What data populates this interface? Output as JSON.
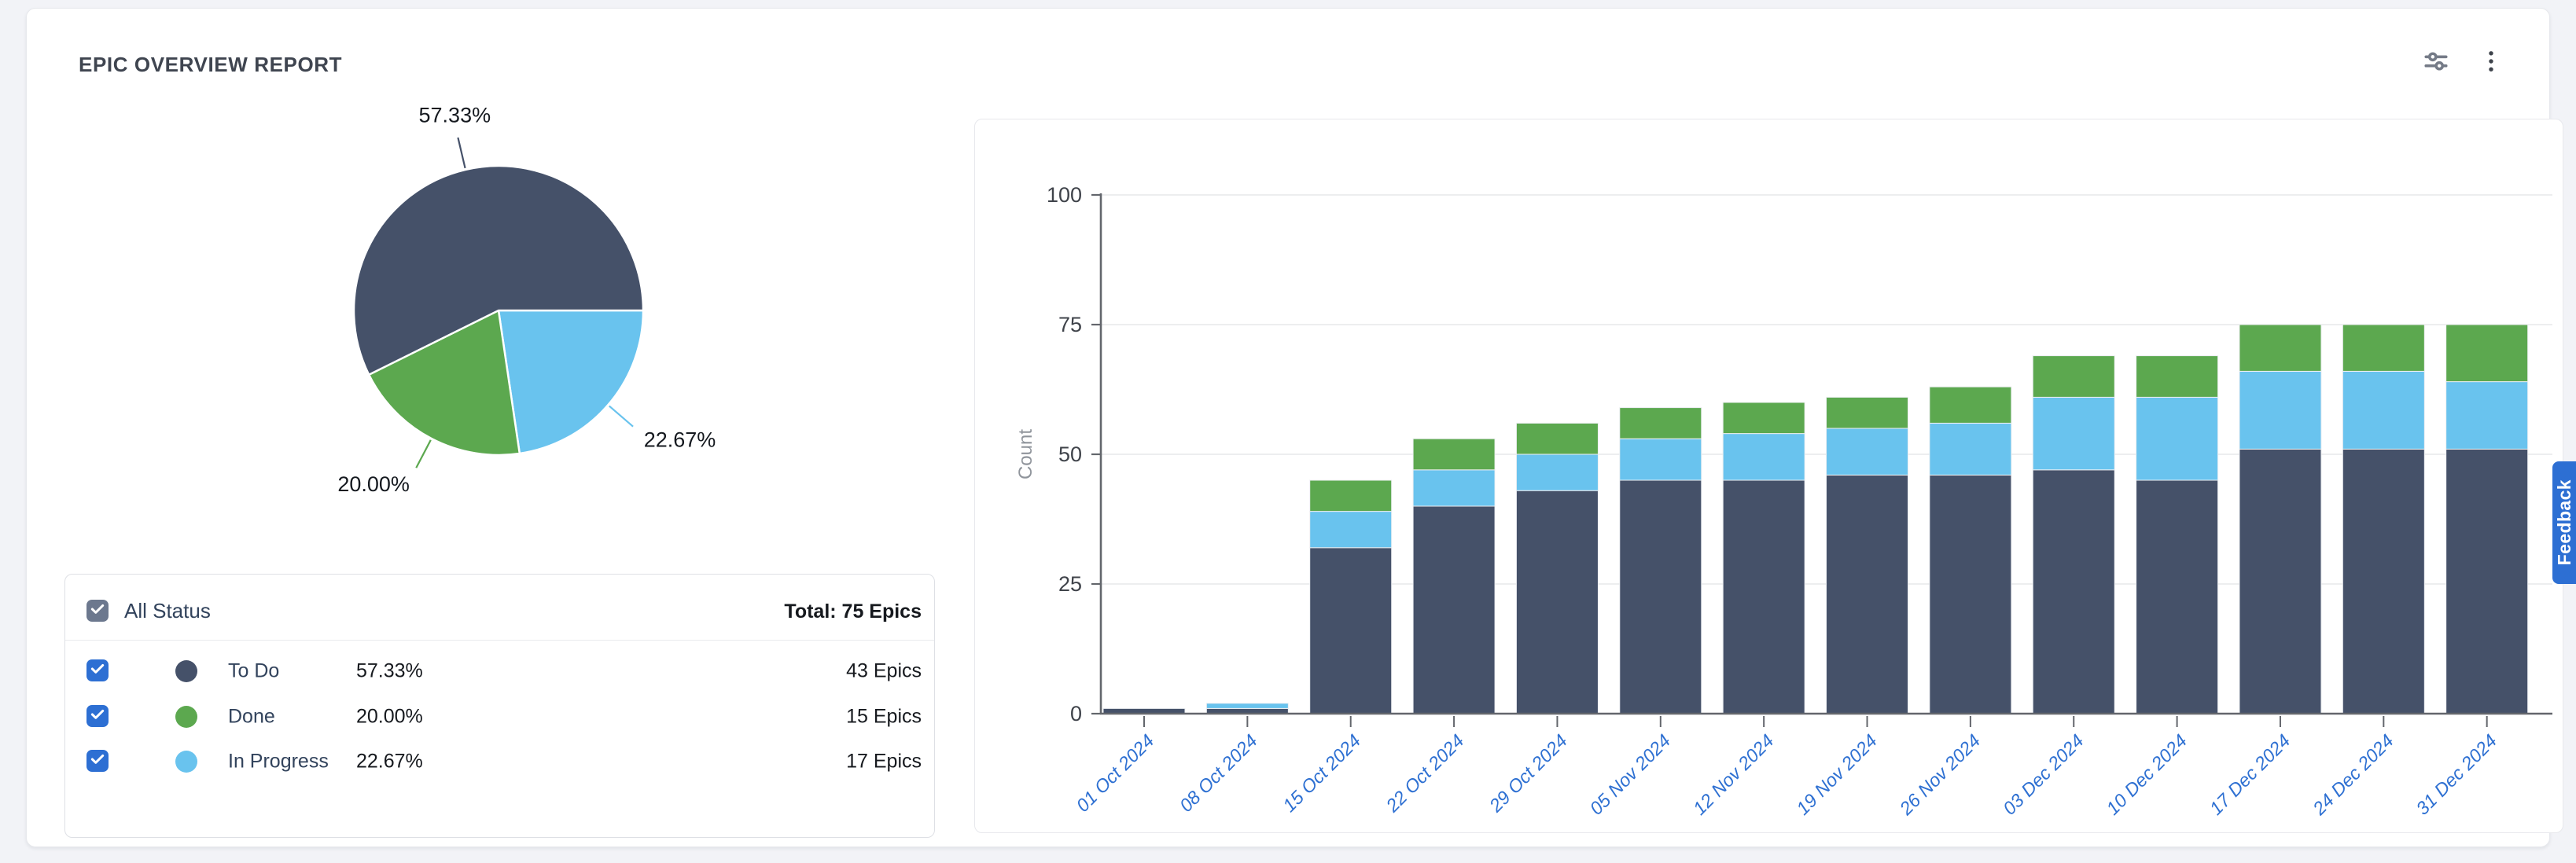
{
  "report": {
    "title": "EPIC OVERVIEW REPORT"
  },
  "toolbar": {
    "filter_icon": "sliders-icon",
    "menu_icon": "kebab-menu-icon"
  },
  "colors": {
    "to_do": "#455169",
    "done": "#5CA84F",
    "in_progress": "#69C3EE",
    "accent_blue": "#2D6FD3",
    "axis_label_blue": "#2E70D2",
    "grid": "#E7E8EA",
    "axis": "#63666C",
    "text_dark": "#16191E",
    "text_navy": "#32435C",
    "muted": "#8F949B"
  },
  "legend": {
    "all_label": "All Status",
    "total_label": "Total: 75 Epics",
    "rows": [
      {
        "label": "To Do",
        "pct": "57.33%",
        "count": "43 Epics",
        "color": "#455169",
        "checked": true
      },
      {
        "label": "Done",
        "pct": "20.00%",
        "count": "15 Epics",
        "color": "#5CA84F",
        "checked": true
      },
      {
        "label": "In Progress",
        "pct": "22.67%",
        "count": "17 Epics",
        "color": "#69C3EE",
        "checked": true
      }
    ]
  },
  "feedback_label": "Feedback",
  "chart_data": [
    {
      "type": "pie",
      "title": "Epic status distribution",
      "total_epics": 75,
      "start_angle_deg": 0,
      "slices": [
        {
          "label": "In Progress",
          "percent": 22.67,
          "pct_label": "22.67%",
          "epics": 17,
          "color": "#69C3EE"
        },
        {
          "label": "Done",
          "percent": 20.0,
          "pct_label": "20.00%",
          "epics": 15,
          "color": "#5CA84F"
        },
        {
          "label": "To Do",
          "percent": 57.33,
          "pct_label": "57.33%",
          "epics": 43,
          "color": "#455169"
        }
      ]
    },
    {
      "type": "bar",
      "stacked": true,
      "ylabel": "Count",
      "ylim": [
        0,
        100
      ],
      "yticks": [
        0,
        25,
        50,
        75,
        100
      ],
      "grid": "horizontal",
      "xtick_rotation": -45,
      "categories": [
        "01 Oct 2024",
        "08 Oct 2024",
        "15 Oct 2024",
        "22 Oct 2024",
        "29 Oct 2024",
        "05 Nov 2024",
        "12 Nov 2024",
        "19 Nov 2024",
        "26 Nov 2024",
        "03 Dec 2024",
        "10 Dec 2024",
        "17 Dec 2024",
        "24 Dec 2024",
        "31 Dec 2024"
      ],
      "series": [
        {
          "name": "To Do",
          "color": "#455169",
          "values": [
            1,
            1,
            32,
            40,
            43,
            45,
            45,
            46,
            46,
            47,
            45,
            51,
            51,
            51
          ]
        },
        {
          "name": "In Progress",
          "color": "#69C3EE",
          "values": [
            0,
            1,
            7,
            7,
            7,
            8,
            9,
            9,
            10,
            14,
            16,
            15,
            15,
            13
          ]
        },
        {
          "name": "Done",
          "color": "#5CA84F",
          "values": [
            0,
            0,
            6,
            6,
            6,
            6,
            6,
            6,
            7,
            8,
            8,
            9,
            9,
            11
          ]
        }
      ],
      "totals": [
        1,
        2,
        45,
        53,
        56,
        59,
        60,
        61,
        63,
        69,
        69,
        75,
        75,
        75
      ]
    }
  ]
}
